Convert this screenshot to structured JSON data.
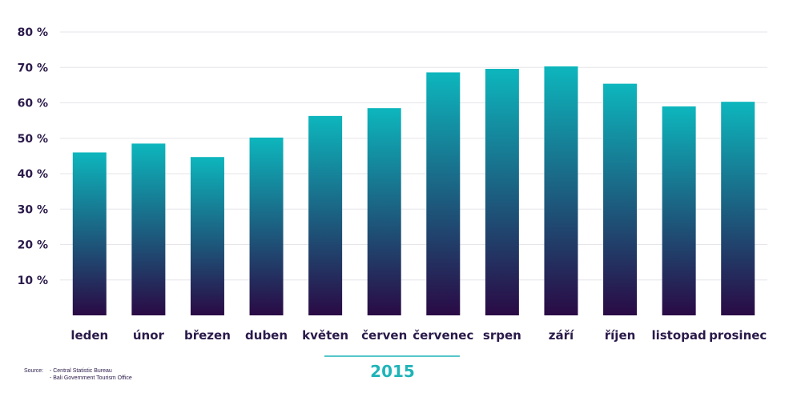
{
  "chart_data": {
    "type": "bar",
    "categories": [
      "leden",
      "únor",
      "březen",
      "duben",
      "květen",
      "červen",
      "červenec",
      "srpen",
      "září",
      "říjen",
      "listopad",
      "prosinec"
    ],
    "values": [
      46,
      48.5,
      44.7,
      50.2,
      56.3,
      58.5,
      68.6,
      69.6,
      70.3,
      65.4,
      59,
      60.3
    ],
    "ylim": [
      0,
      80
    ],
    "yticks": [
      10,
      20,
      30,
      40,
      50,
      60,
      70,
      80
    ],
    "ytick_labels": [
      "10 %",
      "20 %",
      "30 %",
      "40 %",
      "50 %",
      "60 %",
      "70 %",
      "80 %"
    ],
    "grid": true,
    "colors": {
      "bar_top": "#0db6bd",
      "bar_bottom": "#2a0a45",
      "text": "#2a1a4a",
      "accent": "#1fb4b8",
      "grid": "#e6e6ea"
    }
  },
  "xlabel": "2015",
  "source": {
    "label": "Source:",
    "lines": [
      "- Central Statistic Bureau",
      "- Bali Government Tourism Office"
    ]
  }
}
